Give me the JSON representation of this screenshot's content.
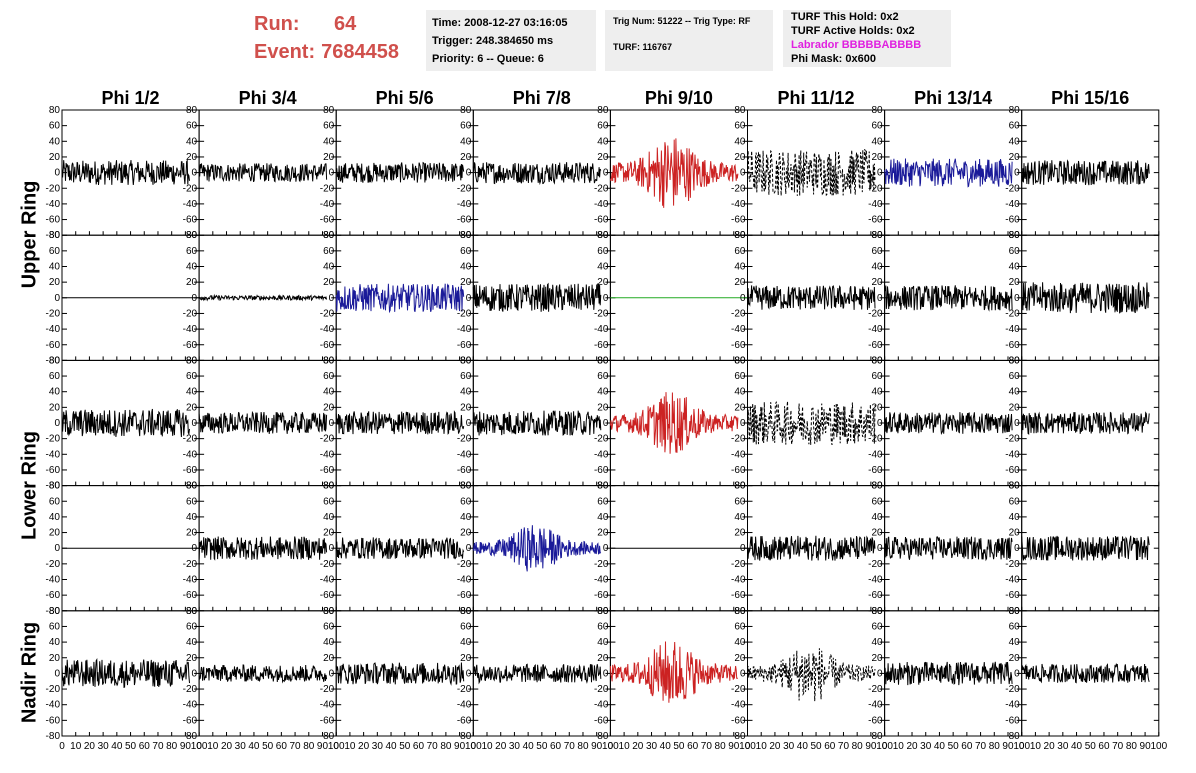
{
  "header": {
    "run_label": "Run:",
    "run_value": "64",
    "event_label": "Event:",
    "event_value": "7684458"
  },
  "info_box_1": {
    "time": "Time: 2008-12-27 03:16:05",
    "trigger": "Trigger: 248.384650 ms",
    "priority": "Priority: 6 -- Queue: 6"
  },
  "info_box_2": {
    "trig": "Trig Num: 51222 -- Trig Type: RF",
    "turf": "TURF: 116767"
  },
  "info_box_3": {
    "this_hold": "TURF This Hold: 0x2",
    "active_holds": "TURF Active Holds: 0x2",
    "labrador": "Labrador BBBBBABBBB",
    "phi_mask": "Phi Mask: 0x600"
  },
  "phi_headers": [
    "Phi 1/2",
    "Phi 3/4",
    "Phi 5/6",
    "Phi 7/8",
    "Phi 9/10",
    "Phi 11/12",
    "Phi 13/14",
    "Phi 15/16"
  ],
  "ring_labels": [
    "Upper Ring",
    "Lower Ring",
    "Nadir Ring"
  ],
  "colors": {
    "red": "#cc2222",
    "blue": "#1a1a99",
    "green": "#22aa22",
    "black": "#000000",
    "dashed": "#000000"
  },
  "chart_data": {
    "type": "line",
    "grid_rows": 5,
    "grid_cols": 8,
    "ylim": [
      -80,
      80
    ],
    "xlim": [
      0,
      100
    ],
    "y_ticks": [
      -80,
      -60,
      -40,
      -20,
      0,
      20,
      40,
      60,
      80
    ],
    "x_ticks": [
      0,
      10,
      20,
      30,
      40,
      50,
      60,
      70,
      80,
      90,
      100
    ],
    "panels": [
      [
        {
          "style": "black",
          "amp": 16
        },
        {
          "style": "black",
          "amp": 12
        },
        {
          "style": "black",
          "amp": 13
        },
        {
          "style": "black",
          "amp": 14
        },
        {
          "style": "red",
          "amp": 50,
          "burst": true
        },
        {
          "style": "dashed",
          "amp": 30
        },
        {
          "style": "blue",
          "amp": 18
        },
        {
          "style": "black",
          "amp": 16
        }
      ],
      [
        {
          "style": "flat",
          "amp": 0
        },
        {
          "style": "black",
          "amp": 3
        },
        {
          "style": "blue",
          "amp": 18
        },
        {
          "style": "black",
          "amp": 18
        },
        {
          "style": "green",
          "amp": 0
        },
        {
          "style": "black",
          "amp": 16
        },
        {
          "style": "black",
          "amp": 16
        },
        {
          "style": "black",
          "amp": 20
        }
      ],
      [
        {
          "style": "black",
          "amp": 18
        },
        {
          "style": "black",
          "amp": 14
        },
        {
          "style": "black",
          "amp": 15
        },
        {
          "style": "black",
          "amp": 16
        },
        {
          "style": "red",
          "amp": 42,
          "burst": true
        },
        {
          "style": "dashed",
          "amp": 28
        },
        {
          "style": "black",
          "amp": 14
        },
        {
          "style": "black",
          "amp": 14
        }
      ],
      [
        {
          "style": "flat",
          "amp": 0
        },
        {
          "style": "black",
          "amp": 15
        },
        {
          "style": "black",
          "amp": 14
        },
        {
          "style": "blue",
          "amp": 32,
          "burst": true
        },
        {
          "style": "flat",
          "amp": 0
        },
        {
          "style": "black",
          "amp": 16
        },
        {
          "style": "black",
          "amp": 15
        },
        {
          "style": "black",
          "amp": 16
        }
      ],
      [
        {
          "style": "black",
          "amp": 18
        },
        {
          "style": "black",
          "amp": 11
        },
        {
          "style": "black",
          "amp": 14
        },
        {
          "style": "black",
          "amp": 12
        },
        {
          "style": "red",
          "amp": 45,
          "burst": true
        },
        {
          "style": "dashed",
          "amp": 40,
          "burst": true
        },
        {
          "style": "black",
          "amp": 15
        },
        {
          "style": "black",
          "amp": 12
        }
      ]
    ]
  }
}
